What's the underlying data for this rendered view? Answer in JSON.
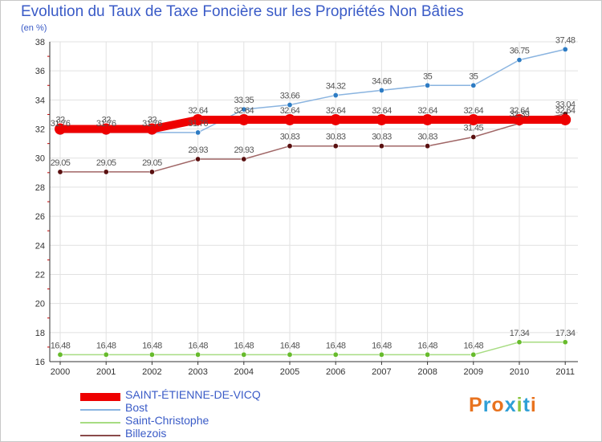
{
  "header": {
    "title": "Evolution du Taux de Taxe Foncière sur les Propriétés Non Bâties",
    "unit": "(en %)"
  },
  "logo": {
    "text": "Proxiti",
    "colors": [
      "#e8731f",
      "#2f9fd6",
      "#e8731f",
      "#2f9fd6",
      "#8cc63f",
      "#2f9fd6",
      "#e8731f"
    ]
  },
  "colors": {
    "title": "#3a5bc7",
    "grid": "#e1e1e1",
    "axis": "#333333",
    "tick_red": "#cc0000"
  },
  "chart_data": {
    "type": "line",
    "title": "Evolution du Taux de Taxe Foncière sur les Propriétés Non Bâties",
    "ylabel": "(en %)",
    "xlabel": "",
    "ylim": [
      16,
      38
    ],
    "yticks": [
      16,
      18,
      20,
      22,
      24,
      26,
      28,
      30,
      32,
      34,
      36,
      38
    ],
    "categories": [
      "2000",
      "2001",
      "2002",
      "2003",
      "2004",
      "2005",
      "2006",
      "2007",
      "2008",
      "2009",
      "2010",
      "2011"
    ],
    "grid": true,
    "legend_position": "bottom-left",
    "series": [
      {
        "name": "Bost",
        "color": "#8ab4e0",
        "marker": "#2e7cc4",
        "values": [
          31.76,
          31.76,
          31.76,
          31.76,
          33.35,
          33.66,
          34.32,
          34.66,
          35,
          35,
          36.75,
          37.48
        ],
        "labels": [
          "31.76",
          "31.76",
          "31.76",
          "31.76",
          "33.35",
          "33.66",
          "34.32",
          "34.66",
          "35",
          "35",
          "36.75",
          "37.48"
        ]
      },
      {
        "name": "Saint-Christophe",
        "color": "#a7dc82",
        "marker": "#67bb2c",
        "values": [
          16.48,
          16.48,
          16.48,
          16.48,
          16.48,
          16.48,
          16.48,
          16.48,
          16.48,
          16.48,
          17.34,
          17.34
        ],
        "labels": [
          "16.48",
          "16.48",
          "16.48",
          "16.48",
          "16.48",
          "16.48",
          "16.48",
          "16.48",
          "16.48",
          "16.48",
          "17.34",
          "17.34"
        ]
      },
      {
        "name": "Billezois",
        "color": "#a06666",
        "marker": "#5a1010",
        "values": [
          29.05,
          29.05,
          29.05,
          29.93,
          29.93,
          30.83,
          30.83,
          30.83,
          30.83,
          31.45,
          32.39,
          33.04
        ],
        "labels": [
          "29.05",
          "29.05",
          "29.05",
          "29.93",
          "29.93",
          "30.83",
          "30.83",
          "30.83",
          "30.83",
          "31.45",
          "32.39",
          "33.04"
        ]
      },
      {
        "name": "SAINT-ÉTIENNE-DE-VICQ",
        "color": "#ee0000",
        "marker": "#ee0000",
        "values": [
          32,
          32,
          32,
          32.64,
          32.64,
          32.64,
          32.64,
          32.64,
          32.64,
          32.64,
          32.64,
          32.64
        ],
        "labels": [
          "32",
          "32",
          "32",
          "32.64",
          "32.64",
          "32.64",
          "32.64",
          "32.64",
          "32.64",
          "32.64",
          "32.64",
          "32.64"
        ]
      }
    ],
    "legend": [
      {
        "name": "SAINT-ÉTIENNE-DE-VICQ",
        "color": "#ee0000",
        "weight": "thick"
      },
      {
        "name": "Bost",
        "color": "#8ab4e0",
        "weight": "thin"
      },
      {
        "name": "Saint-Christophe",
        "color": "#a7dc82",
        "weight": "thin"
      },
      {
        "name": "Billezois",
        "color": "#8a4a4a",
        "weight": "thin"
      }
    ]
  }
}
